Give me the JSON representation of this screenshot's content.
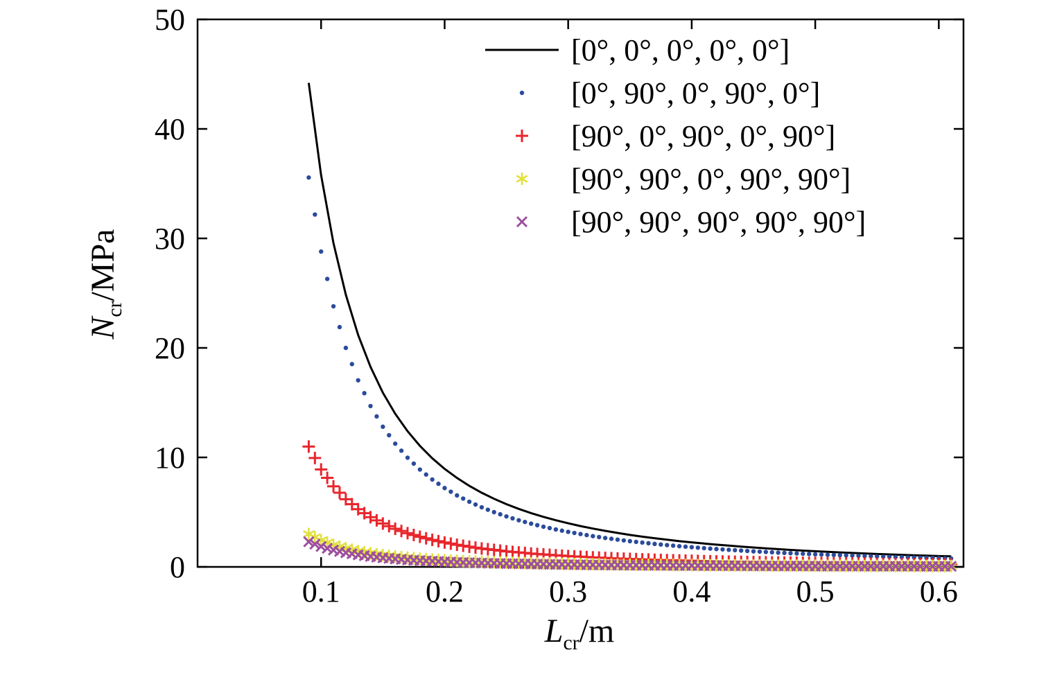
{
  "figure": {
    "background": "#ffffff"
  },
  "axes": {
    "x": {
      "label": {
        "var": "L",
        "sub": "cr",
        "unit": "/m"
      },
      "min": 0,
      "max": 0.62,
      "ticks": [
        0.1,
        0.2,
        0.3,
        0.4,
        0.5,
        0.6
      ],
      "tick_labels": [
        "0.1",
        "0.2",
        "0.3",
        "0.4",
        "0.5",
        "0.6"
      ]
    },
    "y": {
      "label": {
        "var": "N",
        "sub": "cr",
        "unit": "/MPa"
      },
      "min": 0,
      "max": 50,
      "ticks": [
        0,
        10,
        20,
        30,
        40,
        50
      ],
      "tick_labels": [
        "0",
        "10",
        "20",
        "30",
        "40",
        "50"
      ]
    }
  },
  "chart_data": {
    "type": "line",
    "title": "",
    "xlabel": "L_cr/m",
    "ylabel": "N_cr/MPa",
    "xlim": [
      0,
      0.62
    ],
    "ylim": [
      0,
      50
    ],
    "grid": false,
    "legend_position": "top-right",
    "x": [
      0.09,
      0.1,
      0.11,
      0.12,
      0.13,
      0.14,
      0.15,
      0.16,
      0.17,
      0.18,
      0.19,
      0.2,
      0.21,
      0.22,
      0.23,
      0.24,
      0.25,
      0.26,
      0.27,
      0.28,
      0.29,
      0.3,
      0.31,
      0.32,
      0.33,
      0.34,
      0.35,
      0.36,
      0.37,
      0.38,
      0.39,
      0.4,
      0.41,
      0.42,
      0.43,
      0.44,
      0.45,
      0.46,
      0.47,
      0.48,
      0.49,
      0.5,
      0.51,
      0.52,
      0.53,
      0.54,
      0.55,
      0.56,
      0.57,
      0.58,
      0.59,
      0.6,
      0.61
    ],
    "series": [
      {
        "name": "[0°, 0°, 0°, 0°, 0°]",
        "color": "#000000",
        "marker": "line",
        "values": [
          44.2,
          35.8,
          29.59,
          24.86,
          21.18,
          18.27,
          15.91,
          13.98,
          12.39,
          11.05,
          9.92,
          8.95,
          8.12,
          7.4,
          6.77,
          6.22,
          5.73,
          5.3,
          4.91,
          4.57,
          4.26,
          3.98,
          3.73,
          3.5,
          3.29,
          3.1,
          2.92,
          2.76,
          2.62,
          2.48,
          2.35,
          2.24,
          2.13,
          2.03,
          1.94,
          1.85,
          1.77,
          1.69,
          1.62,
          1.55,
          1.49,
          1.43,
          1.38,
          1.32,
          1.27,
          1.23,
          1.18,
          1.14,
          1.1,
          1.06,
          1.03,
          0.99,
          0.96
        ]
      },
      {
        "name": "[0°, 90°, 0°, 90°, 0°]",
        "color": "#2b4b9b",
        "marker": "dot",
        "marker_subdiv": 2,
        "values": [
          35.56,
          28.8,
          23.8,
          20.0,
          17.04,
          14.69,
          12.8,
          11.25,
          9.97,
          8.89,
          7.98,
          7.2,
          6.53,
          5.95,
          5.44,
          5.0,
          4.61,
          4.26,
          3.95,
          3.67,
          3.42,
          3.2,
          3.0,
          2.81,
          2.64,
          2.49,
          2.35,
          2.22,
          2.1,
          1.99,
          1.89,
          1.8,
          1.71,
          1.63,
          1.56,
          1.49,
          1.42,
          1.36,
          1.3,
          1.25,
          1.2,
          1.15,
          1.11,
          1.07,
          1.03,
          0.99,
          0.95,
          0.92,
          0.89,
          0.86,
          0.83,
          0.8,
          0.77
        ]
      },
      {
        "name": "[90°, 0°, 90°, 0°, 90°]",
        "color": "#e8262c",
        "marker": "plus",
        "marker_subdiv": 2,
        "values": [
          10.99,
          8.9,
          7.36,
          6.18,
          5.27,
          4.54,
          3.96,
          3.48,
          3.08,
          2.75,
          2.47,
          2.23,
          2.02,
          1.84,
          1.68,
          1.55,
          1.42,
          1.32,
          1.22,
          1.14,
          1.06,
          0.99,
          0.93,
          0.87,
          0.82,
          0.77,
          0.73,
          0.69,
          0.65,
          0.62,
          0.59,
          0.56,
          0.53,
          0.5,
          0.48,
          0.46,
          0.44,
          0.42,
          0.4,
          0.39,
          0.37,
          0.36,
          0.34,
          0.33,
          0.32,
          0.31,
          0.29,
          0.28,
          0.27,
          0.26,
          0.26,
          0.25,
          0.24
        ]
      },
      {
        "name": "[90°, 90°, 0°, 90°, 90°]",
        "color": "#e2e03c",
        "marker": "asterisk",
        "marker_subdiv": 2,
        "values": [
          3.0,
          2.43,
          2.01,
          1.69,
          1.44,
          1.24,
          1.08,
          0.95,
          0.84,
          0.75,
          0.67,
          0.61,
          0.55,
          0.5,
          0.46,
          0.42,
          0.39,
          0.36,
          0.33,
          0.31,
          0.29,
          0.27,
          0.25,
          0.24,
          0.22,
          0.21,
          0.2,
          0.19,
          0.18,
          0.17,
          0.16,
          0.15,
          0.14,
          0.14,
          0.13,
          0.13,
          0.12,
          0.11,
          0.11,
          0.11,
          0.1,
          0.1,
          0.09,
          0.09,
          0.09,
          0.08,
          0.08,
          0.08,
          0.07,
          0.07,
          0.07,
          0.07,
          0.07
        ]
      },
      {
        "name": "[90°, 90°, 90°, 90°, 90°]",
        "color": "#9d4e9e",
        "marker": "x",
        "marker_subdiv": 2,
        "values": [
          2.3,
          1.86,
          1.54,
          1.29,
          1.1,
          0.95,
          0.83,
          0.73,
          0.64,
          0.57,
          0.52,
          0.47,
          0.42,
          0.38,
          0.35,
          0.32,
          0.3,
          0.28,
          0.26,
          0.24,
          0.22,
          0.21,
          0.19,
          0.18,
          0.17,
          0.16,
          0.15,
          0.14,
          0.14,
          0.13,
          0.12,
          0.12,
          0.11,
          0.11,
          0.1,
          0.1,
          0.09,
          0.09,
          0.08,
          0.08,
          0.08,
          0.07,
          0.07,
          0.07,
          0.07,
          0.06,
          0.06,
          0.06,
          0.06,
          0.06,
          0.05,
          0.05,
          0.05
        ]
      }
    ]
  }
}
